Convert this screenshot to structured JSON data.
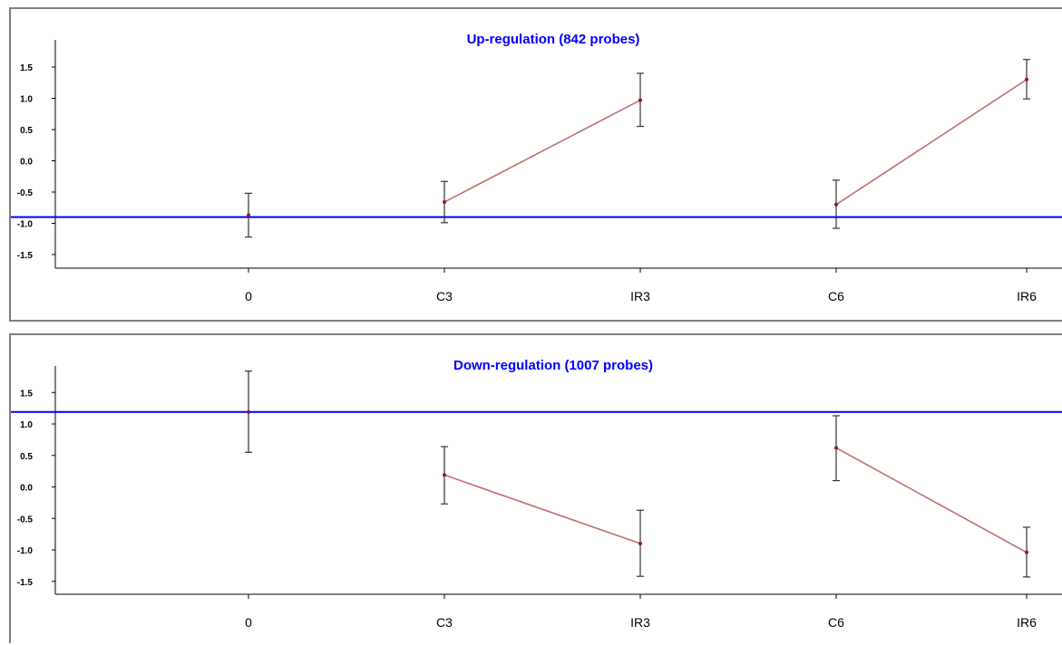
{
  "chart_data": [
    {
      "type": "line",
      "title": "Up-regulation (842 probes)",
      "categories": [
        "0",
        "C3",
        "IR3",
        "C6",
        "IR6"
      ],
      "yticks": [
        "1.5",
        "1.0",
        "0.5",
        "0.0",
        "-0.5",
        "-1.0",
        "-1.5"
      ],
      "ylim": [
        -1.7,
        1.9
      ],
      "reference_line": -0.9,
      "points": [
        {
          "category": "0",
          "value": -0.87,
          "err_low": -1.22,
          "err_high": -0.52
        },
        {
          "category": "C3",
          "value": -0.66,
          "err_low": -0.99,
          "err_high": -0.33
        },
        {
          "category": "IR3",
          "value": 0.97,
          "err_low": 0.55,
          "err_high": 1.4
        },
        {
          "category": "C6",
          "value": -0.7,
          "err_low": -1.08,
          "err_high": -0.31
        },
        {
          "category": "IR6",
          "value": 1.3,
          "err_low": 0.99,
          "err_high": 1.62
        }
      ],
      "segments": [
        [
          "C3",
          "IR3"
        ],
        [
          "C6",
          "IR6"
        ]
      ],
      "colors": {
        "reference": "#0000ff",
        "series": "#c07070",
        "title": "#0000ff"
      }
    },
    {
      "type": "line",
      "title": "Down-regulation (1007 probes)",
      "categories": [
        "0",
        "C3",
        "IR3",
        "C6",
        "IR6"
      ],
      "yticks": [
        "1.5",
        "1.0",
        "0.5",
        "0.0",
        "-0.5",
        "-1.0",
        "-1.5"
      ],
      "ylim": [
        -1.7,
        1.9
      ],
      "reference_line": 1.19,
      "points": [
        {
          "category": "0",
          "value": 1.19,
          "err_low": 0.55,
          "err_high": 1.84
        },
        {
          "category": "C3",
          "value": 0.19,
          "err_low": -0.27,
          "err_high": 0.64
        },
        {
          "category": "IR3",
          "value": -0.9,
          "err_low": -1.42,
          "err_high": -0.37
        },
        {
          "category": "C6",
          "value": 0.62,
          "err_low": 0.1,
          "err_high": 1.13
        },
        {
          "category": "IR6",
          "value": -1.04,
          "err_low": -1.43,
          "err_high": -0.64
        }
      ],
      "segments": [
        [
          "C3",
          "IR3"
        ],
        [
          "C6",
          "IR6"
        ]
      ],
      "colors": {
        "reference": "#0000ff",
        "series": "#c07070",
        "title": "#0000ff"
      }
    }
  ]
}
